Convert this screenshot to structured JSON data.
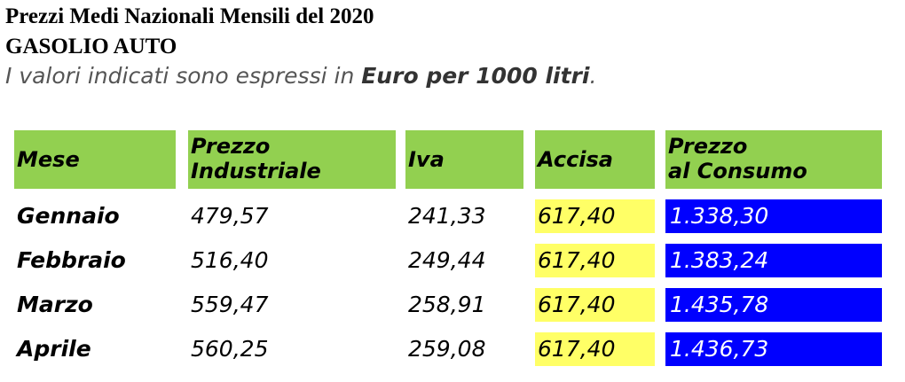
{
  "header": {
    "title": "Prezzi Medi Nazionali Mensili del 2020",
    "subtitle": "GASOLIO AUTO",
    "note_prefix": "I valori indicati sono espressi in ",
    "note_unit": "Euro per 1000 litri",
    "note_suffix": "."
  },
  "table": {
    "columns": {
      "mese": "Mese",
      "prezzo_industriale_line1": "Prezzo",
      "prezzo_industriale_line2": "Industriale",
      "iva": "Iva",
      "accisa": "Accisa",
      "prezzo_consumo_line1": "Prezzo",
      "prezzo_consumo_line2": "al Consumo"
    },
    "rows": [
      {
        "mese": "Gennaio",
        "prezzo_industriale": "479,57",
        "iva": "241,33",
        "accisa": "617,40",
        "prezzo_consumo": "1.338,30"
      },
      {
        "mese": "Febbraio",
        "prezzo_industriale": "516,40",
        "iva": "249,44",
        "accisa": "617,40",
        "prezzo_consumo": "1.383,24"
      },
      {
        "mese": "Marzo",
        "prezzo_industriale": "559,47",
        "iva": "258,91",
        "accisa": "617,40",
        "prezzo_consumo": "1.435,78"
      },
      {
        "mese": "Aprile",
        "prezzo_industriale": "560,25",
        "iva": "259,08",
        "accisa": "617,40",
        "prezzo_consumo": "1.436,73"
      }
    ]
  },
  "colors": {
    "header_bg": "#92d050",
    "accisa_bg": "#ffff66",
    "consumo_bg": "#0000ff",
    "consumo_text": "#ffffff"
  }
}
